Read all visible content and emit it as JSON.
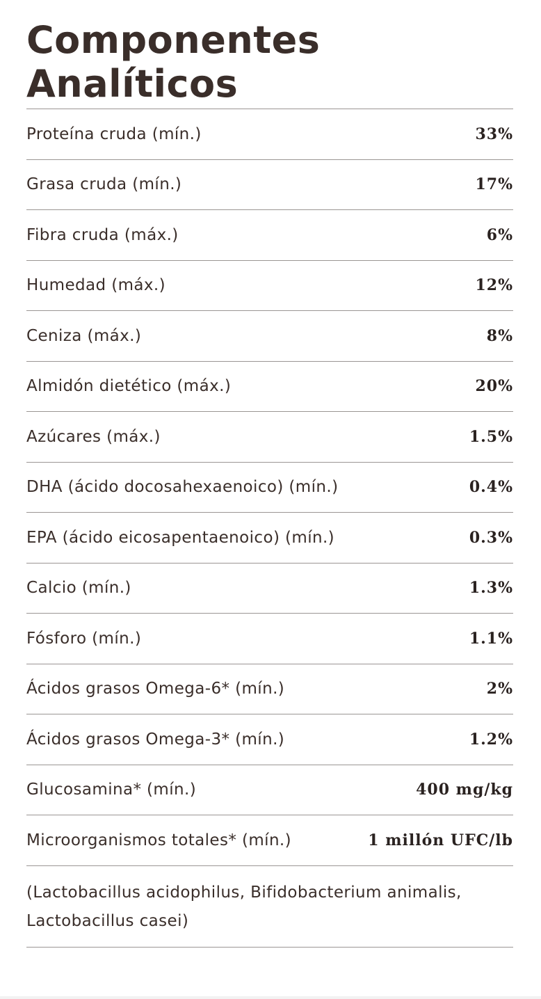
{
  "header": {
    "title": "Componentes Analíticos"
  },
  "table": {
    "rows": [
      [
        "Proteína cruda (mín.)",
        "33%"
      ],
      [
        "Grasa cruda (mín.)",
        "17%"
      ],
      [
        "Fibra cruda (máx.)",
        "6%"
      ],
      [
        "Humedad (máx.)",
        "12%"
      ],
      [
        "Ceniza (máx.)",
        "8%"
      ],
      [
        "Almidón dietético (máx.)",
        "20%"
      ],
      [
        "Azúcares (máx.)",
        "1.5%"
      ],
      [
        "DHA (ácido docosahexaenoico) (mín.)",
        "0.4%"
      ],
      [
        "EPA (ácido eicosapentaenoico) (mín.)",
        "0.3%"
      ],
      [
        "Calcio (mín.)",
        "1.3%"
      ],
      [
        "Fósforo (mín.)",
        "1.1%"
      ],
      [
        "Ácidos grasos Omega-6* (mín.)",
        "2%"
      ],
      [
        "Ácidos grasos Omega-3* (mín.)",
        "1.2%"
      ],
      [
        "Glucosamina* (mín.)",
        "400 mg/kg"
      ],
      [
        "Microorganismos totales* (mín.)",
        "1 millón UFC/lb"
      ]
    ]
  },
  "footnote": "(Lactobacillus acidophilus, Bifidobacterium animalis, Lactobacillus casei)"
}
